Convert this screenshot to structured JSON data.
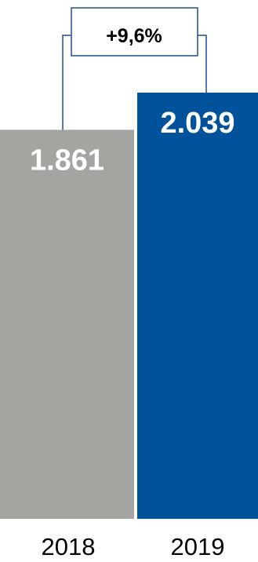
{
  "chart_data": {
    "type": "bar",
    "categories": [
      "2018",
      "2019"
    ],
    "values": [
      1861,
      2039
    ],
    "value_labels": [
      "1.861",
      "2.039"
    ],
    "ylim": [
      0,
      2039
    ],
    "colors": [
      "#A4A4A1",
      "#00529B"
    ],
    "growth_label": "+9,6%",
    "connector_color": "#1F4E8C",
    "grid": false,
    "legend": "none"
  }
}
